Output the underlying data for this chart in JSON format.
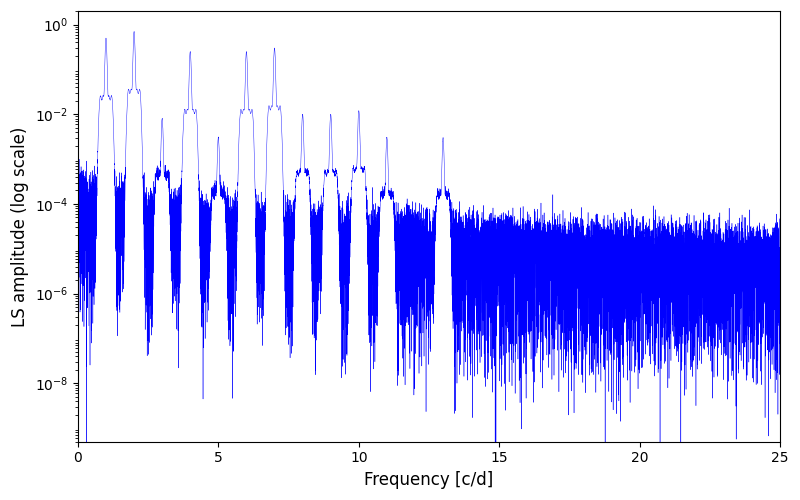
{
  "title": "",
  "xlabel": "Frequency [c/d]",
  "ylabel": "LS amplitude (log scale)",
  "xlim": [
    0,
    25
  ],
  "ylim": [
    5e-10,
    2.0
  ],
  "line_color": "#0000ff",
  "line_width": 0.3,
  "figsize": [
    8.0,
    5.0
  ],
  "dpi": 100,
  "seed": 12345,
  "n_points": 15000,
  "freq_max": 25.0,
  "background_color": "#ffffff",
  "yticks": [
    1e-08,
    1e-06,
    0.0001,
    0.01,
    1.0
  ],
  "xticks": [
    0,
    5,
    10,
    15,
    20,
    25
  ],
  "peak_freqs": [
    1.0,
    2.0,
    3.0,
    4.0,
    5.0,
    6.0,
    7.0,
    8.0,
    9.0,
    10.0,
    11.0,
    13.0
  ],
  "peak_heights": [
    0.5,
    0.7,
    0.008,
    0.25,
    0.003,
    0.25,
    0.3,
    0.01,
    0.01,
    0.012,
    0.003,
    0.003
  ]
}
